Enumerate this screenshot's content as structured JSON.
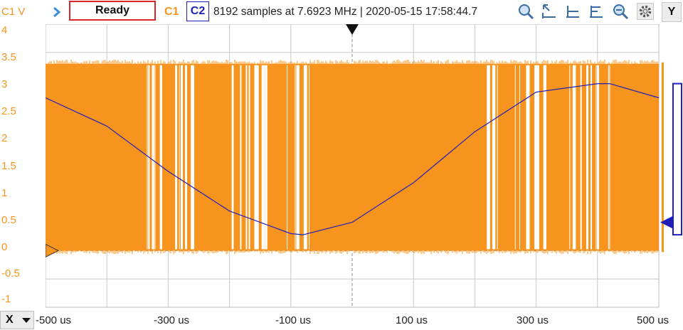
{
  "toolbar": {
    "axis_title": "C1 V",
    "status": "Ready",
    "channel1": "C1",
    "channel2": "C2",
    "acquisition_info": "8192 samples at 7.6923 MHz | 2020-05-15 17:58:44.7",
    "y_button": "Y",
    "x_button": "X",
    "icons": [
      "play-icon",
      "zoom-in-icon",
      "cursor-icon",
      "horizontal-cursor-icon",
      "measure-icon",
      "zoom-out-icon",
      "settings-gear-icon"
    ]
  },
  "colors": {
    "channel1": "#f7941d",
    "channel2": "#1f1fb8",
    "grid": "#c8c8c8",
    "status_border": "#d9262b"
  },
  "chart_data": {
    "type": "line",
    "ylabel": "C1 V",
    "ylim": [
      -1,
      4
    ],
    "y_ticks": [
      "4",
      "3.5",
      "3",
      "2.5",
      "2",
      "1.5",
      "1",
      "0.5",
      "0",
      "-0.5",
      "-1"
    ],
    "xlim": [
      -500,
      500
    ],
    "x_unit": "us",
    "x_ticks": [
      "-500 us",
      "-300 us",
      "-100 us",
      "100 us",
      "300 us",
      "500 us"
    ],
    "grid": true,
    "series": [
      {
        "name": "C1",
        "kind": "PWM band",
        "high_v": 3.3,
        "low_v": 0.0
      },
      {
        "name": "C2",
        "x": [
          -500,
          -400,
          -300,
          -200,
          -100,
          -80,
          0,
          100,
          200,
          300,
          400,
          420,
          500
        ],
        "values": [
          2.7,
          2.2,
          1.4,
          0.7,
          0.3,
          0.28,
          0.5,
          1.2,
          2.1,
          2.8,
          2.95,
          2.95,
          2.7
        ]
      }
    ]
  }
}
